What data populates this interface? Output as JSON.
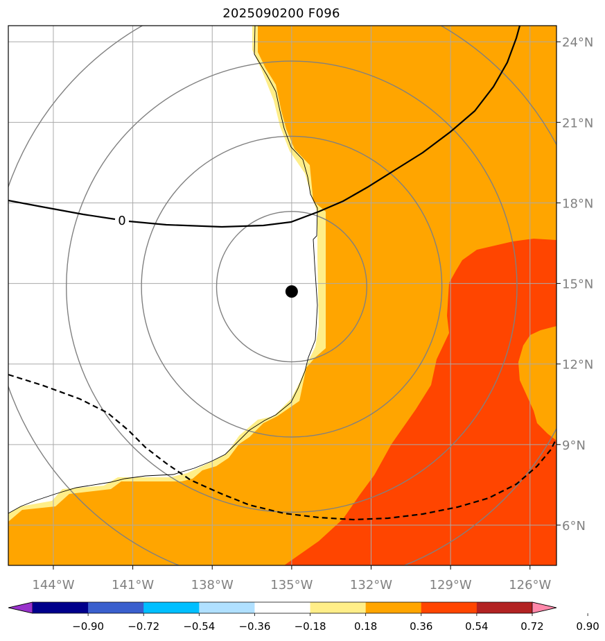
{
  "title": "2025090200 F096",
  "map": {
    "lon_range": [
      -145.7,
      -125.0
    ],
    "lat_range": [
      4.5,
      24.6
    ],
    "lon_ticks": [
      {
        "value": -144,
        "label": "144°W"
      },
      {
        "value": -141,
        "label": "141°W"
      },
      {
        "value": -138,
        "label": "138°W"
      },
      {
        "value": -135,
        "label": "135°W"
      },
      {
        "value": -132,
        "label": "132°W"
      },
      {
        "value": -129,
        "label": "129°W"
      },
      {
        "value": -126,
        "label": "126°W"
      }
    ],
    "lat_ticks": [
      {
        "value": 6,
        "label": "6°N"
      },
      {
        "value": 9,
        "label": "9°N"
      },
      {
        "value": 12,
        "label": "12°N"
      },
      {
        "value": 15,
        "label": "15°N"
      },
      {
        "value": 18,
        "label": "18°N"
      },
      {
        "value": 21,
        "label": "21°N"
      },
      {
        "value": 24,
        "label": "24°N"
      }
    ],
    "grid": true,
    "storm_center": {
      "lon": -135.0,
      "lat": 14.7
    },
    "range_ring_radii_deg": [
      2.8,
      5.6,
      8.4,
      11.2
    ],
    "contour_label": "0",
    "fill_colors": {
      "0.18-0.36": "#ffee88",
      "0.36-0.54": "#ffa500",
      "0.54-0.72": "#ff4500"
    }
  },
  "colorbar": {
    "levels": [
      "−0.90",
      "−0.72",
      "−0.54",
      "−0.36",
      "−0.18",
      "0.18",
      "0.36",
      "0.54",
      "0.72",
      "0.90"
    ],
    "colors": [
      "#9932cc",
      "#00008b",
      "#3a5fcd",
      "#00bfff",
      "#b0e0ff",
      "#ffffff",
      "#ffee88",
      "#ffa500",
      "#ff4500",
      "#b22222",
      "#ff88aa"
    ]
  }
}
